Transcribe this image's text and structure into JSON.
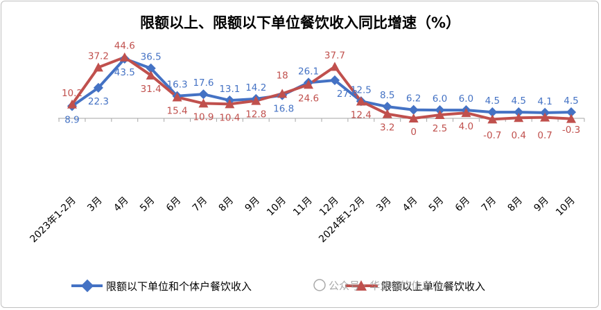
{
  "chart_data": {
    "type": "line",
    "title": "限额以上、限额以下单位餐饮收入同比增速（%）",
    "categories": [
      "2023年1-2月",
      "3月",
      "4月",
      "5月",
      "6月",
      "7月",
      "8月",
      "9月",
      "10月",
      "11月",
      "12月",
      "2024年1-2月",
      "3月",
      "4月",
      "5月",
      "6月",
      "7月",
      "8月",
      "9月",
      "10月"
    ],
    "series": [
      {
        "name": "限额以下单位和个体户餐饮收入",
        "color": "#4472c4",
        "values": [
          8.9,
          22.3,
          43.5,
          36.5,
          16.3,
          17.6,
          13.1,
          14.2,
          16.8,
          26.1,
          27.8,
          12.5,
          8.5,
          6.2,
          6.0,
          6.0,
          4.5,
          4.5,
          4.1,
          4.5
        ],
        "labels": [
          "8.9",
          "22.3",
          "43.5",
          "36.5",
          "16.3",
          "17.6",
          "13.1",
          "14.2",
          "16.8",
          "26.1",
          "27.8",
          "12.5",
          "8.5",
          "6.2",
          "6.0",
          "6.0",
          "4.5",
          "4.5",
          "4.1",
          "4.5"
        ]
      },
      {
        "name": "限额以上单位餐饮收入",
        "color": "#c0504d",
        "values": [
          10.2,
          37.2,
          44.6,
          31.4,
          15.4,
          10.9,
          10.4,
          12.8,
          18.0,
          24.6,
          37.7,
          12.4,
          3.2,
          0,
          2.5,
          4.0,
          -0.7,
          0.4,
          0.7,
          -0.3
        ],
        "labels": [
          "10.2",
          "37.2",
          "44.6",
          "31.4",
          "15.4",
          "10.9",
          "10.4",
          "12.8",
          "18",
          "24.6",
          "37.7",
          "12.4",
          "3.2",
          "0",
          "2.5",
          "4.0",
          "-0.7",
          "0.4",
          "0.7",
          "-0.3"
        ]
      }
    ],
    "legend_position": "bottom",
    "grid": false
  },
  "watermark": "公众号 · 华业餐饮信息中心"
}
